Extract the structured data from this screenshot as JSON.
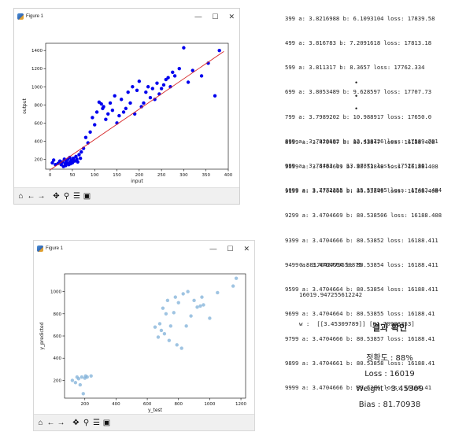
{
  "figure1": {
    "window_title": "Figure 1",
    "controls": {
      "minimize": "—",
      "maximize": "☐",
      "close": "✕"
    },
    "toolbar_icons": [
      "home-icon",
      "back-icon",
      "forward-icon",
      "pan-icon",
      "zoom-icon",
      "configure-icon",
      "save-icon"
    ]
  },
  "figure2": {
    "window_title": "Figure 1",
    "controls": {
      "minimize": "—",
      "maximize": "☐",
      "close": "✕"
    },
    "toolbar_icons": [
      "home-icon",
      "back-icon",
      "forward-icon",
      "pan-icon",
      "zoom-icon",
      "configure-icon",
      "save-icon"
    ]
  },
  "chart_data": [
    {
      "type": "scatter",
      "xlabel": "input",
      "ylabel": "output",
      "xlim": [
        -10,
        400
      ],
      "ylim": [
        90,
        1480
      ],
      "xticks": [
        0,
        50,
        100,
        150,
        200,
        250,
        300,
        350,
        400
      ],
      "yticks": [
        200,
        400,
        600,
        800,
        1000,
        1200,
        1400
      ],
      "point_color": "#0000ee",
      "line_color": "#d62728",
      "fit_line": {
        "x": [
          0,
          390
        ],
        "y": [
          82,
          1390
        ]
      },
      "points": {
        "x": [
          5,
          8,
          12,
          18,
          22,
          25,
          28,
          30,
          32,
          34,
          35,
          36,
          38,
          40,
          42,
          44,
          45,
          46,
          48,
          50,
          52,
          55,
          58,
          60,
          62,
          65,
          68,
          70,
          75,
          80,
          85,
          90,
          95,
          100,
          105,
          110,
          115,
          118,
          120,
          125,
          130,
          135,
          140,
          145,
          150,
          155,
          160,
          165,
          170,
          175,
          180,
          185,
          190,
          195,
          200,
          205,
          210,
          215,
          220,
          225,
          230,
          235,
          240,
          245,
          250,
          255,
          260,
          265,
          270,
          275,
          280,
          290,
          300,
          310,
          320,
          340,
          355,
          370,
          380
        ],
        "y": [
          160,
          190,
          140,
          155,
          180,
          140,
          170,
          120,
          200,
          150,
          130,
          180,
          160,
          200,
          140,
          220,
          170,
          150,
          190,
          160,
          210,
          180,
          230,
          200,
          170,
          250,
          210,
          280,
          320,
          440,
          380,
          500,
          660,
          580,
          720,
          830,
          810,
          760,
          780,
          640,
          700,
          820,
          740,
          900,
          600,
          680,
          860,
          720,
          760,
          940,
          820,
          1000,
          700,
          960,
          1060,
          780,
          820,
          940,
          1000,
          880,
          980,
          860,
          1040,
          920,
          980,
          1020,
          1080,
          1100,
          1000,
          1160,
          1120,
          1200,
          1430,
          1050,
          1180,
          1120,
          1260,
          900,
          1400
        ]
      }
    },
    {
      "type": "scatter",
      "xlabel": "y_test",
      "ylabel": "y_predicted",
      "xlim": [
        70,
        1230
      ],
      "ylim": [
        40,
        1160
      ],
      "xticks": [
        200,
        400,
        600,
        800,
        1000,
        1200
      ],
      "yticks": [
        200,
        400,
        600,
        800,
        1000
      ],
      "point_color": "#7fb0d8",
      "points": {
        "x": [
          120,
          140,
          150,
          160,
          170,
          180,
          190,
          200,
          205,
          215,
          240,
          650,
          670,
          680,
          690,
          700,
          710,
          720,
          730,
          740,
          750,
          770,
          780,
          790,
          800,
          820,
          830,
          850,
          860,
          880,
          900,
          920,
          940,
          950,
          960,
          1000,
          1050,
          1150,
          1170
        ],
        "y": [
          200,
          180,
          230,
          215,
          160,
          230,
          80,
          220,
          240,
          230,
          240,
          680,
          590,
          710,
          650,
          850,
          620,
          800,
          920,
          560,
          690,
          810,
          950,
          520,
          900,
          490,
          980,
          690,
          1000,
          780,
          920,
          860,
          870,
          950,
          880,
          760,
          990,
          1050,
          1120
        ]
      }
    }
  ],
  "log_top": [
    "399 a: 3.8216988 b: 6.1093104 loss: 17839.58",
    "499 a: 3.816783 b: 7.2091618 loss: 17813.18",
    "599 a: 3.811317 b: 8.3657 loss: 17762.334",
    "699 a: 3.8053489 b: 9.628597 loss: 17707.73",
    "799 a: 3.7989202 b: 10.988917 loss: 17650.0",
    "899 a: 3.7920692 b: 12.438726 loss: 17589.701",
    "999 a: 3.78483 b: 13.97871 loss: 17527.361",
    "1099 a: 3.7772355 b: 15.577985 loss: 17463.484"
  ],
  "ellipsis": [
    "•",
    "•",
    "•"
  ],
  "log_bottom": [
    "8999 a: 3.470467 b: 80.53847 loss: 16188.408",
    "9099 a: 3.4704669 b: 80.53848 loss: 16188.408",
    "9199 a: 3.4704666 b: 80.53849 loss: 16188.408",
    "9299 a: 3.4704669 b: 80.538506 loss: 16188.408",
    "9399 a: 3.4704666 b: 80.53852 loss: 16188.411",
    "9499 a: 3.4704664 b: 80.53854 loss: 16188.411",
    "9599 a: 3.4704664 b: 80.53854 loss: 16188.411",
    "9699 a: 3.4704664 b: 80.53855 loss: 16188.41",
    "9799 a: 3.4704666 b: 80.53857 loss: 16188.41",
    "9899 a: 3.4704661 b: 80.53858 loss: 16188.41",
    "9999 a: 3.4704666 b: 80.5386 loss: 16188.41"
  ],
  "results": [
    "0.8817042779650875",
    "16019.947255612242",
    "w :  [[3.45309789]] [81.70938353]"
  ],
  "summary": {
    "heading": "결과 확인",
    "lines": [
      "정확도 : 88%",
      "Loss : 16019",
      "Weight : 3.45309",
      "Bias : 81.70938"
    ]
  }
}
